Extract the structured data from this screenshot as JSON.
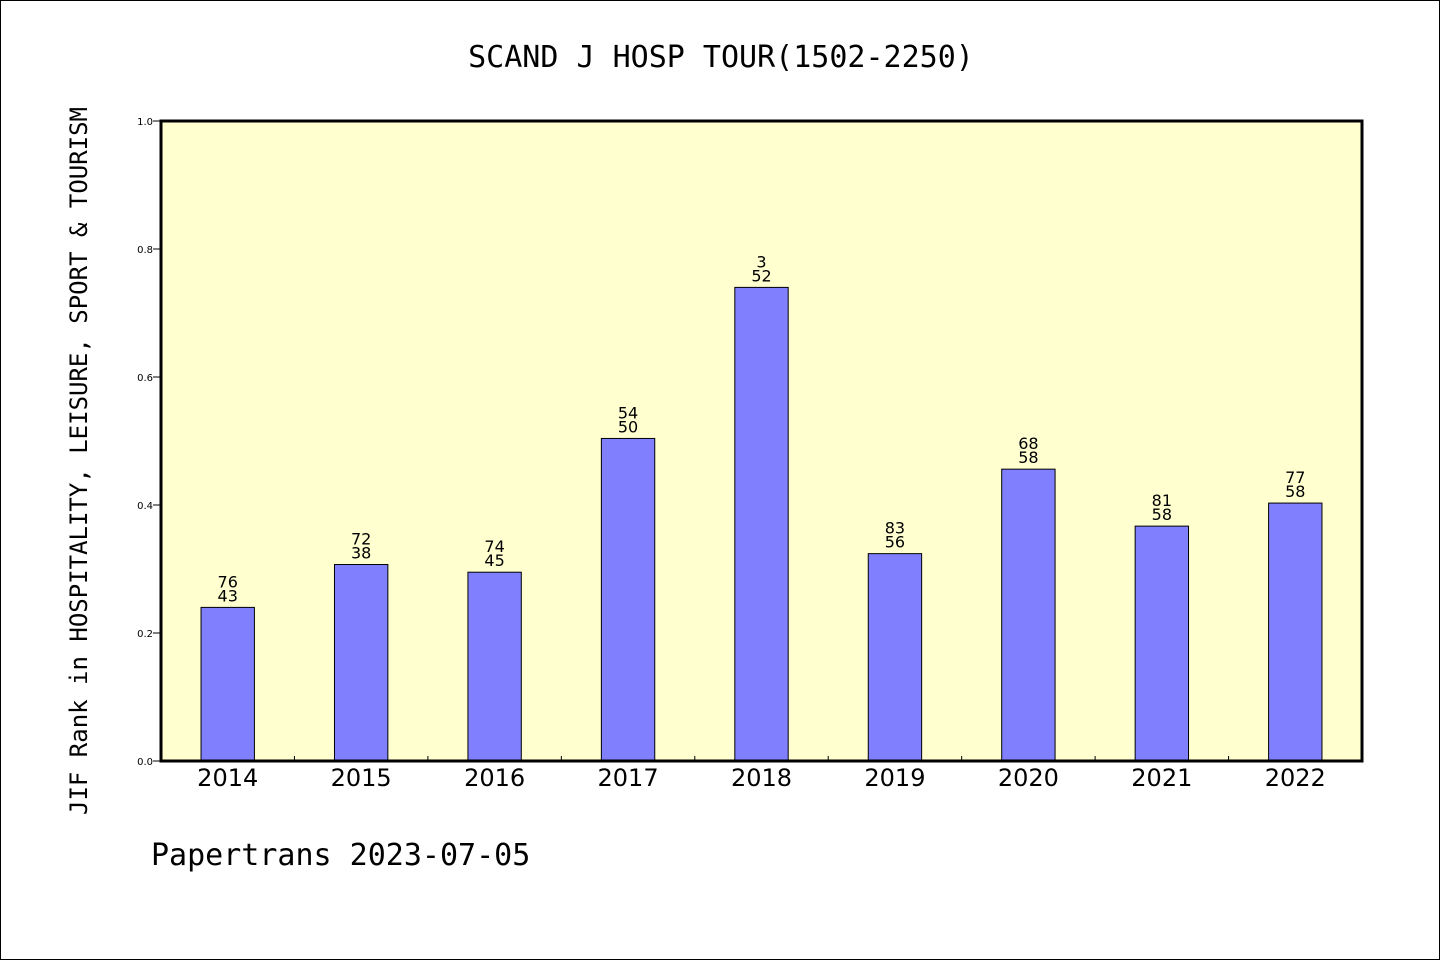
{
  "chart_data": {
    "type": "bar",
    "title": "SCAND J HOSP TOUR(1502-2250)",
    "ylabel": "JIF Rank in HOSPITALITY, LEISURE, SPORT & TOURISM",
    "xlabel": "",
    "footer": "Papertrans 2023-07-05",
    "categories": [
      "2014",
      "2015",
      "2016",
      "2017",
      "2018",
      "2019",
      "2020",
      "2021",
      "2022"
    ],
    "values": [
      0.24,
      0.307,
      0.295,
      0.504,
      0.74,
      0.324,
      0.456,
      0.367,
      0.403
    ],
    "bar_labels": [
      [
        "76",
        "43"
      ],
      [
        "72",
        "38"
      ],
      [
        "74",
        "45"
      ],
      [
        "54",
        "50"
      ],
      [
        "3",
        "52"
      ],
      [
        "83",
        "56"
      ],
      [
        "68",
        "58"
      ],
      [
        "81",
        "58"
      ],
      [
        "77",
        "58"
      ]
    ],
    "ylim": [
      0,
      1.0
    ],
    "yticks": [
      "0.0",
      "0.2",
      "0.4",
      "0.6",
      "0.8",
      "1.0"
    ],
    "grid": false,
    "colors": {
      "bar": "#8080ff",
      "plot_background": "#ffffd0",
      "axis": "#000000"
    }
  }
}
